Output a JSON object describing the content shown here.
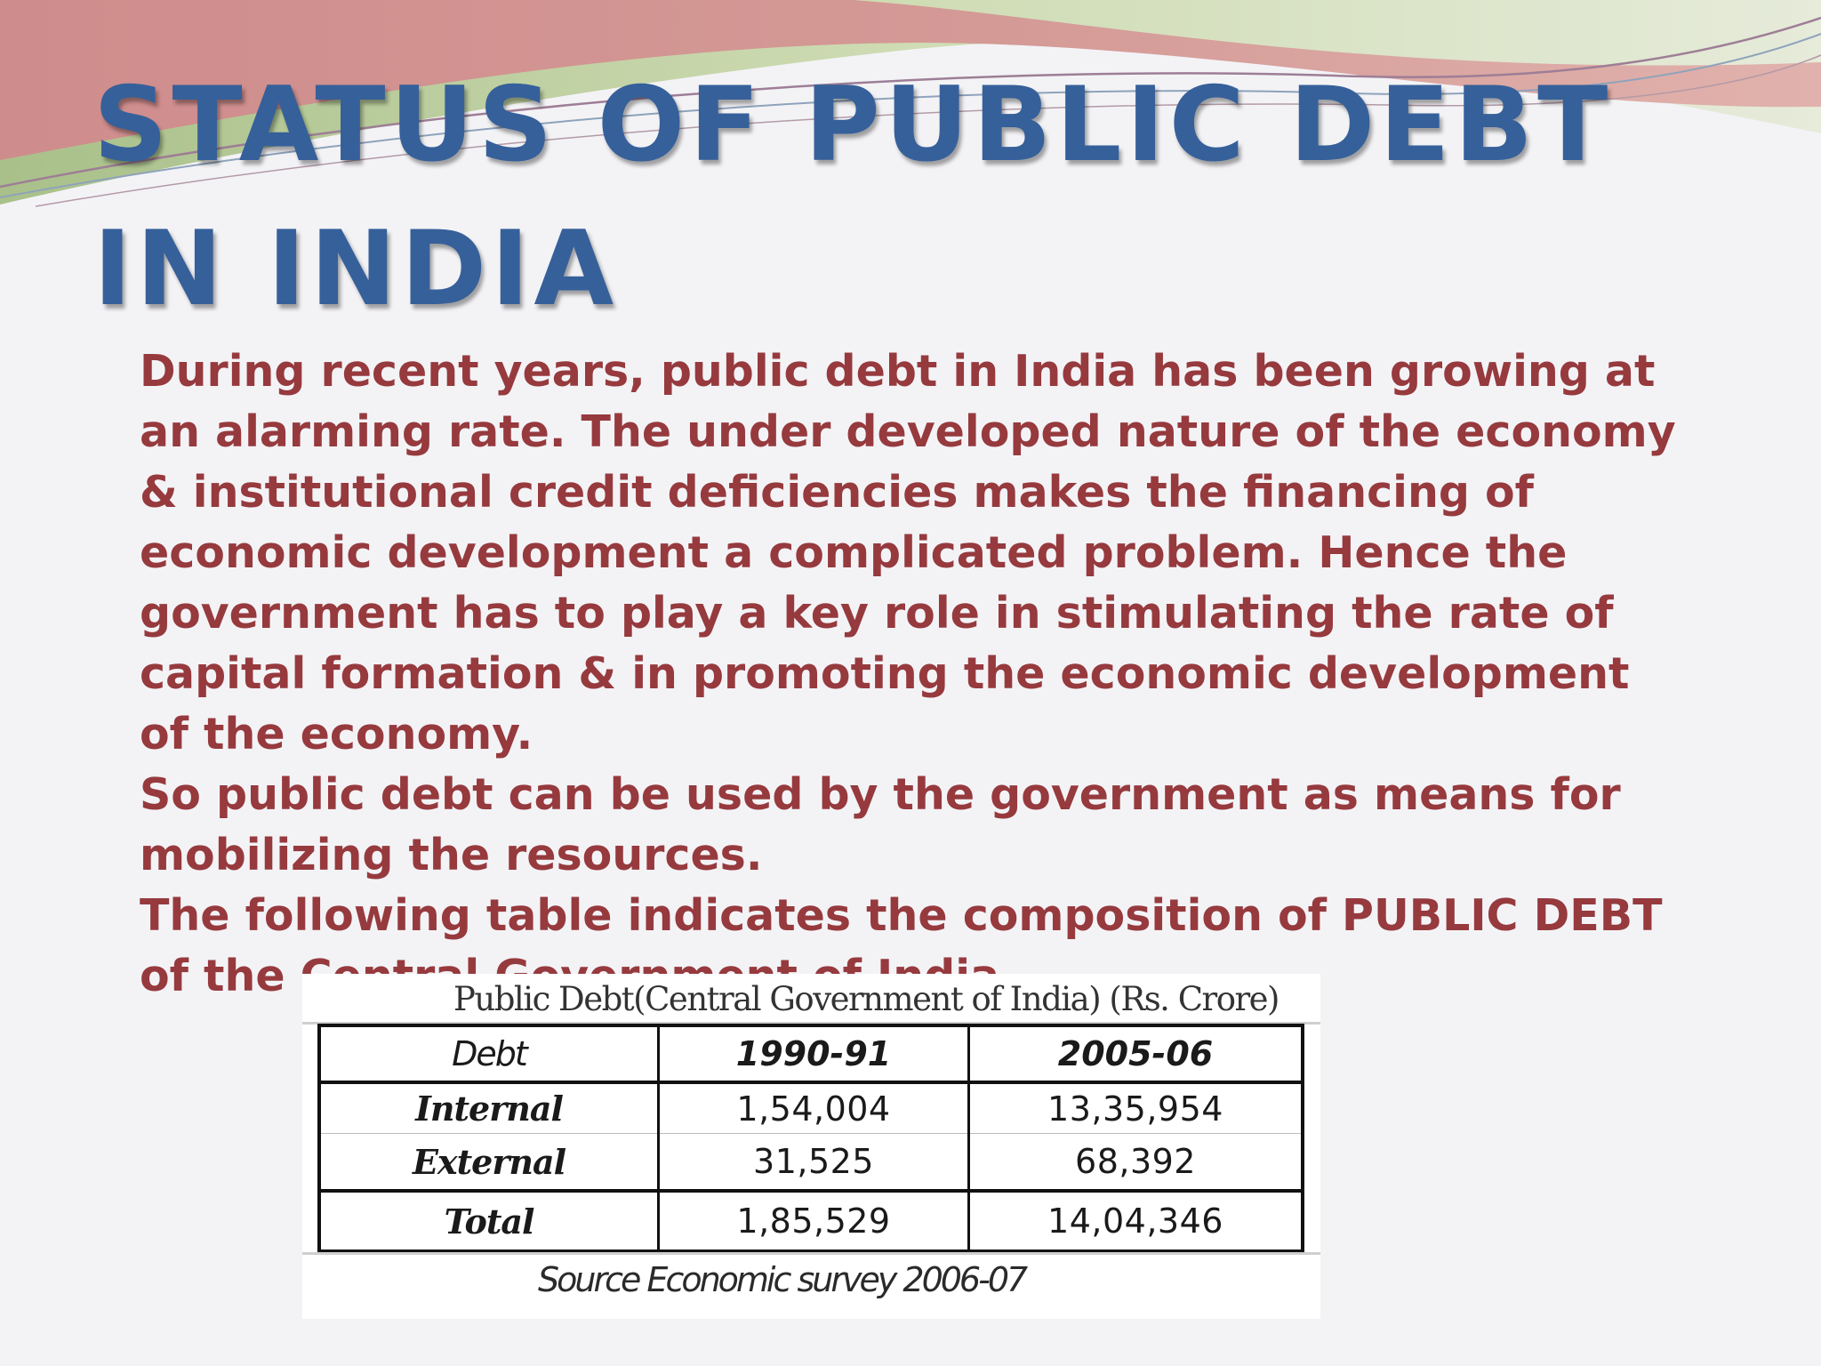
{
  "slide": {
    "title": "Status of Public Debt in India",
    "paragraphs": [
      "During recent years, public debt in India has been growing at an alarming rate. The under developed nature of the economy & institutional credit deficiencies makes the financing of economic development a complicated problem. Hence the government has to play a key role in stimulating the rate of capital formation & in promoting the economic development of the economy.",
      "So public debt can be used by the government as means for mobilizing the resources.",
      "The following table indicates the composition of PUBLIC DEBT of the Central Government of India."
    ]
  },
  "table": {
    "caption": "Public Debt(Central Government of India) (Rs. Crore)",
    "header": {
      "label": "Debt",
      "years": [
        "1990-91",
        "2005-06"
      ]
    },
    "rows": {
      "internal": {
        "label": "Internal",
        "values": [
          "1,54,004",
          "13,35,954"
        ]
      },
      "external": {
        "label": "External",
        "values": [
          "31,525",
          "68,392"
        ]
      },
      "total": {
        "label": "Total",
        "values": [
          "1,85,529",
          "14,04,346"
        ]
      }
    },
    "source": "Source Economic survey 2006-07"
  },
  "colors": {
    "title": "#36609a",
    "body_text": "#963a3e",
    "background": "#f3f3f6",
    "swoosh_rose": "#cd9292",
    "swoosh_green": "#c5d3a6"
  }
}
